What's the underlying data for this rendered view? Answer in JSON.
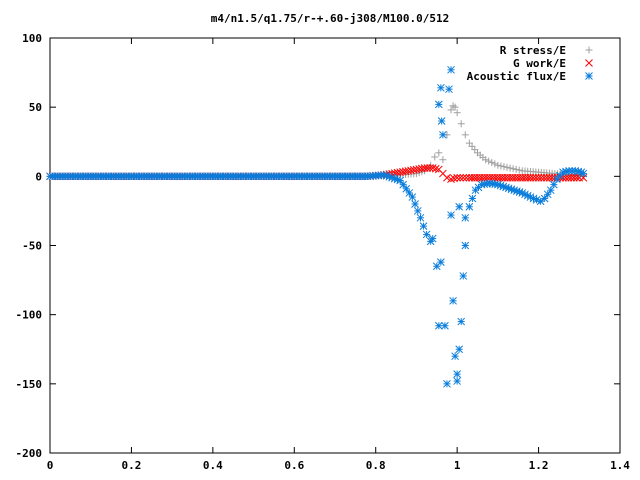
{
  "chart_data": {
    "type": "scatter",
    "title": "m4/n1.5/q1.75/r-+.60-j308/M100.0/512",
    "xlabel": "",
    "ylabel": "",
    "xlim": [
      0,
      1.4
    ],
    "ylim": [
      -200,
      100
    ],
    "x_ticks": [
      "0",
      "0.2",
      "0.4",
      "0.6",
      "0.8",
      "1",
      "1.2",
      "1.4"
    ],
    "y_ticks": [
      "100",
      "50",
      "0",
      "-50",
      "-100",
      "-150",
      "-200"
    ],
    "grid": false,
    "legend_position": "top-right",
    "series": [
      {
        "name": "R stress/E",
        "marker": "plus",
        "color": "#a0a0a0",
        "points": [
          [
            0.0,
            0
          ],
          [
            0.1,
            0
          ],
          [
            0.2,
            0
          ],
          [
            0.3,
            0
          ],
          [
            0.4,
            0
          ],
          [
            0.5,
            0
          ],
          [
            0.6,
            0
          ],
          [
            0.7,
            0
          ],
          [
            0.78,
            0
          ],
          [
            0.82,
            0.5
          ],
          [
            0.86,
            1
          ],
          [
            0.9,
            2
          ],
          [
            0.92,
            4
          ],
          [
            0.935,
            8
          ],
          [
            0.945,
            14
          ],
          [
            0.955,
            17
          ],
          [
            0.965,
            12
          ],
          [
            0.975,
            30
          ],
          [
            0.985,
            48
          ],
          [
            0.99,
            51
          ],
          [
            0.995,
            50
          ],
          [
            1.0,
            46
          ],
          [
            1.01,
            38
          ],
          [
            1.02,
            30
          ],
          [
            1.03,
            24
          ],
          [
            1.05,
            17
          ],
          [
            1.07,
            12
          ],
          [
            1.1,
            8
          ],
          [
            1.13,
            6
          ],
          [
            1.16,
            4
          ],
          [
            1.2,
            3
          ],
          [
            1.24,
            2
          ],
          [
            1.28,
            1
          ],
          [
            1.31,
            0
          ]
        ]
      },
      {
        "name": "G work/E",
        "marker": "cross",
        "color": "#ff0000",
        "points": [
          [
            0.0,
            0
          ],
          [
            0.1,
            0
          ],
          [
            0.2,
            0
          ],
          [
            0.3,
            0
          ],
          [
            0.4,
            0
          ],
          [
            0.5,
            0
          ],
          [
            0.6,
            0
          ],
          [
            0.7,
            0
          ],
          [
            0.78,
            0
          ],
          [
            0.82,
            1
          ],
          [
            0.86,
            3
          ],
          [
            0.9,
            5
          ],
          [
            0.92,
            6
          ],
          [
            0.94,
            6
          ],
          [
            0.955,
            5
          ],
          [
            0.965,
            2
          ],
          [
            0.975,
            -1
          ],
          [
            0.985,
            -2
          ],
          [
            1.0,
            -1
          ],
          [
            1.03,
            -1
          ],
          [
            1.08,
            -1
          ],
          [
            1.13,
            -1
          ],
          [
            1.18,
            -1
          ],
          [
            1.22,
            -1
          ],
          [
            1.26,
            -1
          ],
          [
            1.3,
            -1
          ],
          [
            1.31,
            -1
          ]
        ]
      },
      {
        "name": "Acoustic flux/E",
        "marker": "star",
        "color": "#0a7ddb",
        "points": [
          [
            0.0,
            0
          ],
          [
            0.1,
            0
          ],
          [
            0.2,
            0
          ],
          [
            0.3,
            0
          ],
          [
            0.4,
            0
          ],
          [
            0.5,
            0
          ],
          [
            0.6,
            0
          ],
          [
            0.7,
            0
          ],
          [
            0.78,
            0
          ],
          [
            0.82,
            1
          ],
          [
            0.86,
            -3
          ],
          [
            0.89,
            -15
          ],
          [
            0.91,
            -30
          ],
          [
            0.925,
            -42
          ],
          [
            0.935,
            -47
          ],
          [
            0.94,
            -45
          ],
          [
            0.95,
            -65
          ],
          [
            0.955,
            -108
          ],
          [
            0.96,
            -62
          ],
          [
            0.955,
            52
          ],
          [
            0.96,
            64
          ],
          [
            0.962,
            40
          ],
          [
            0.965,
            30
          ],
          [
            0.97,
            -108
          ],
          [
            0.975,
            -150
          ],
          [
            0.98,
            63
          ],
          [
            0.985,
            77
          ],
          [
            0.985,
            -28
          ],
          [
            0.99,
            -90
          ],
          [
            0.995,
            -130
          ],
          [
            1.0,
            -148
          ],
          [
            1.0,
            -143
          ],
          [
            1.005,
            -125
          ],
          [
            1.005,
            -22
          ],
          [
            1.01,
            -105
          ],
          [
            1.015,
            -72
          ],
          [
            1.02,
            -50
          ],
          [
            1.02,
            -30
          ],
          [
            1.03,
            -22
          ],
          [
            1.045,
            -10
          ],
          [
            1.06,
            -6
          ],
          [
            1.08,
            -5
          ],
          [
            1.1,
            -6
          ],
          [
            1.12,
            -8
          ],
          [
            1.14,
            -10
          ],
          [
            1.16,
            -12
          ],
          [
            1.18,
            -15
          ],
          [
            1.195,
            -17
          ],
          [
            1.205,
            -18
          ],
          [
            1.215,
            -16
          ],
          [
            1.23,
            -10
          ],
          [
            1.245,
            -2
          ],
          [
            1.26,
            3
          ],
          [
            1.275,
            4
          ],
          [
            1.29,
            4
          ],
          [
            1.305,
            3
          ],
          [
            1.31,
            2
          ]
        ]
      }
    ]
  }
}
